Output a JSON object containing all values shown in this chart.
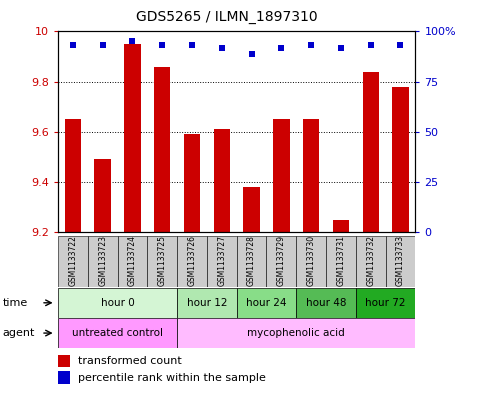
{
  "title": "GDS5265 / ILMN_1897310",
  "samples": [
    "GSM1133722",
    "GSM1133723",
    "GSM1133724",
    "GSM1133725",
    "GSM1133726",
    "GSM1133727",
    "GSM1133728",
    "GSM1133729",
    "GSM1133730",
    "GSM1133731",
    "GSM1133732",
    "GSM1133733"
  ],
  "bar_values": [
    9.65,
    9.49,
    9.95,
    9.86,
    9.59,
    9.61,
    9.38,
    9.65,
    9.65,
    9.25,
    9.84,
    9.78
  ],
  "percentile_values": [
    93,
    93,
    95,
    93,
    93,
    92,
    89,
    92,
    93,
    92,
    93,
    93
  ],
  "bar_bottom": 9.2,
  "ylim_left": [
    9.2,
    10.0
  ],
  "ylim_right": [
    0,
    100
  ],
  "yticks_left": [
    9.2,
    9.4,
    9.6,
    9.8,
    10.0
  ],
  "ytick_labels_left": [
    "9.2",
    "9.4",
    "9.6",
    "9.8",
    "10"
  ],
  "yticks_right": [
    0,
    25,
    50,
    75,
    100
  ],
  "ytick_labels_right": [
    "0",
    "25",
    "50",
    "75",
    "100%"
  ],
  "bar_color": "#cc0000",
  "dot_color": "#0000cc",
  "time_groups": [
    {
      "label": "hour 0",
      "start": 0,
      "end": 3,
      "color": "#d4f5d4"
    },
    {
      "label": "hour 12",
      "start": 4,
      "end": 5,
      "color": "#b0e8b0"
    },
    {
      "label": "hour 24",
      "start": 6,
      "end": 7,
      "color": "#88dd88"
    },
    {
      "label": "hour 48",
      "start": 8,
      "end": 9,
      "color": "#55bb55"
    },
    {
      "label": "hour 72",
      "start": 10,
      "end": 11,
      "color": "#22aa22"
    }
  ],
  "agent_groups": [
    {
      "label": "untreated control",
      "start": 0,
      "end": 3,
      "color": "#ff99ff"
    },
    {
      "label": "mycophenolic acid",
      "start": 4,
      "end": 11,
      "color": "#ffbbff"
    }
  ],
  "legend_bar_label": "transformed count",
  "legend_dot_label": "percentile rank within the sample",
  "xlabel_time": "time",
  "xlabel_agent": "agent",
  "sample_bg_color": "#cccccc",
  "grid_color": "#000000"
}
